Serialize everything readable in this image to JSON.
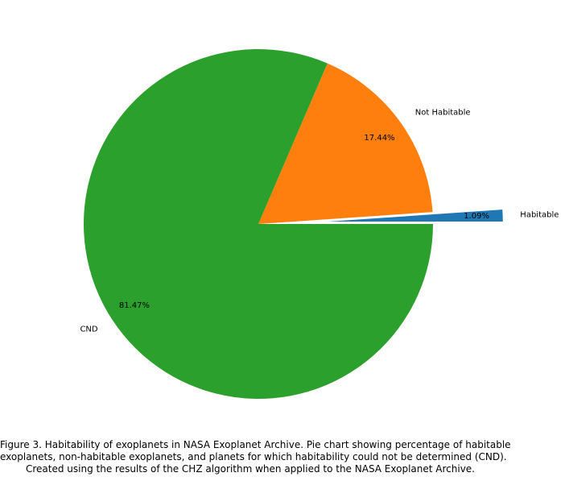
{
  "chart_data": {
    "type": "pie",
    "slices": [
      {
        "label": "Habitable",
        "value": 1.09,
        "pct_label": "1.09%",
        "color": "#1f77b4",
        "explode": 0.4
      },
      {
        "label": "Not Habitable",
        "value": 17.44,
        "pct_label": "17.44%",
        "color": "#ff7f0e",
        "explode": 0
      },
      {
        "label": "CND",
        "value": 81.47,
        "pct_label": "81.47%",
        "color": "#2ca02c",
        "explode": 0
      }
    ],
    "start_angle_deg": 0,
    "direction": "counterclockwise",
    "pct_label_position": "inside near edge",
    "legend": "none"
  },
  "caption": {
    "lines": [
      "Figure 3. Habitability of exoplanets in NASA Exoplanet Archive. Pie chart showing percentage of habitable",
      "exoplanets, non-habitable exoplanets, and planets for which habitability could not be determined (CND).",
      "Created using the results of the CHZ algorithm when applied to the NASA Exoplanet Archive."
    ]
  }
}
